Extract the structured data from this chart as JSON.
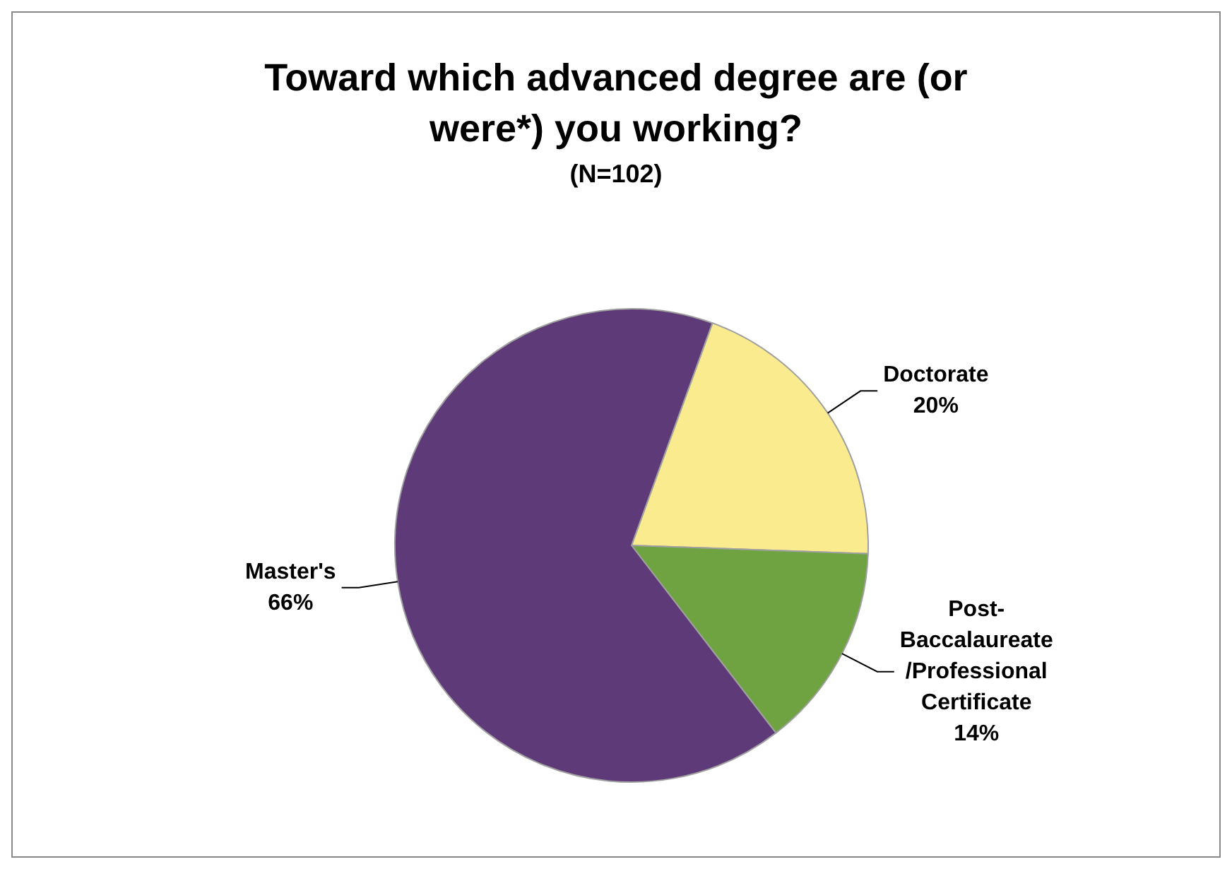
{
  "chart_data": {
    "type": "pie",
    "title": "Toward which advanced degree are (or were*) you working?",
    "subtitle": "(N=102)",
    "categories": [
      "Doctorate",
      "Post-Baccalaureate/Professional Certificate",
      "Master's"
    ],
    "values": [
      20,
      14,
      66
    ],
    "colors": [
      "#fbeb8f",
      "#6fa341",
      "#5e3a78"
    ],
    "value_labels": [
      "20%",
      "14%",
      "66%"
    ],
    "legend": false
  }
}
